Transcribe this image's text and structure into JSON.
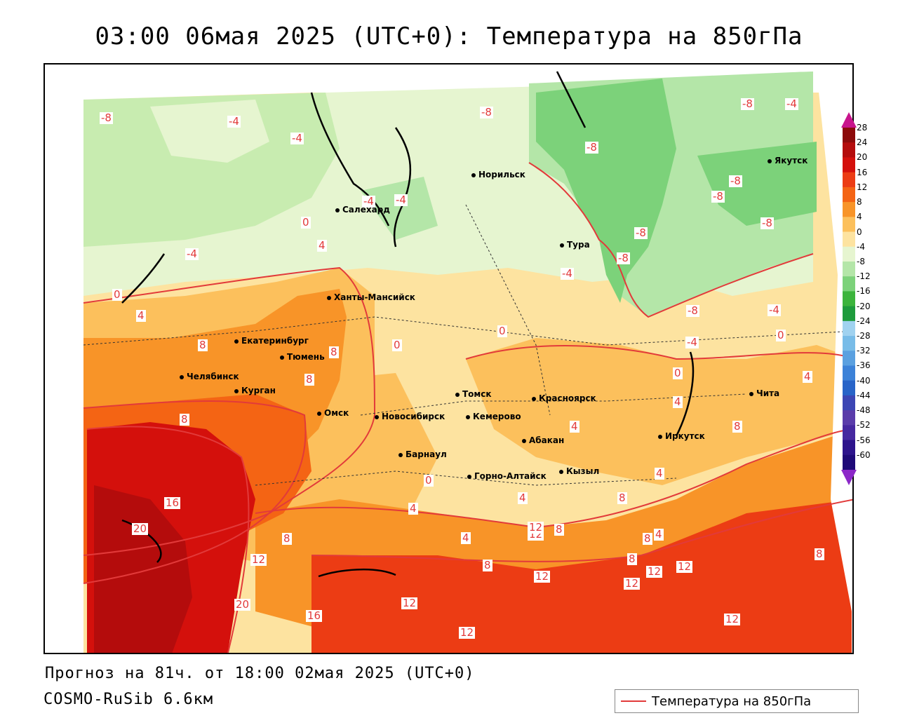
{
  "title": "03:00 06мая 2025 (UTC+0): Температура на 850гПа",
  "footer": {
    "forecast": "Прогноз на 81ч. от 18:00 02мая 2025 (UTC+0)",
    "model": "COSMO-RuSib 6.6км"
  },
  "legend": {
    "label": "Температура на 850гПа",
    "line_color": "#e23a3a"
  },
  "colorbar": {
    "labels": [
      "28",
      "24",
      "20",
      "16",
      "12",
      "8",
      "4",
      "0",
      "-4",
      "-8",
      "-12",
      "-16",
      "-20",
      "-24",
      "-28",
      "-32",
      "-36",
      "-40",
      "-44",
      "-48",
      "-52",
      "-56",
      "-60"
    ],
    "colors": [
      "#8c0a0a",
      "#b40c0c",
      "#d4100c",
      "#ec3c14",
      "#f46414",
      "#f89428",
      "#fcc05c",
      "#fde3a0",
      "#e6f5d0",
      "#b4e6a8",
      "#7cd27a",
      "#3cb43c",
      "#1e9b3c",
      "#a0d2f0",
      "#78bce8",
      "#5aa0e0",
      "#3c82d8",
      "#2864c8",
      "#3c46b4",
      "#5a3caa",
      "#4628a0",
      "#2d148c",
      "#1e0a78"
    ],
    "top_color": "#c8148c",
    "bottom_color": "#8c28c8"
  },
  "cities": [
    {
      "name": "Норильск"
    },
    {
      "name": "Салехард"
    },
    {
      "name": "Тура"
    },
    {
      "name": "Якутск"
    },
    {
      "name": "Ханты-Мансийск"
    },
    {
      "name": "Екатеринбург"
    },
    {
      "name": "Тюмень"
    },
    {
      "name": "Челябинск"
    },
    {
      "name": "Курган"
    },
    {
      "name": "Омск"
    },
    {
      "name": "Новосибирск"
    },
    {
      "name": "Томск"
    },
    {
      "name": "Кемерово"
    },
    {
      "name": "Красноярск"
    },
    {
      "name": "Абакан"
    },
    {
      "name": "Барнаул"
    },
    {
      "name": "Горно-Алтайск"
    },
    {
      "name": "Кызыл"
    },
    {
      "name": "Иркутск"
    },
    {
      "name": "Чита"
    }
  ],
  "contour_labels": [
    "-8",
    "-4",
    "-4",
    "-4",
    "-4",
    "-8",
    "-8",
    "-4",
    "-8",
    "-8",
    "-8",
    "-8",
    "-8",
    "-4",
    "-8",
    "-4",
    "-4",
    "-4",
    "-8",
    "0",
    "0",
    "0",
    "4",
    "4",
    "4",
    "8",
    "8",
    "8",
    "8",
    "0",
    "0",
    "0",
    "4",
    "4",
    "4",
    "8",
    "0",
    "4",
    "4",
    "4",
    "8",
    "8",
    "4",
    "12",
    "8",
    "16",
    "20",
    "8",
    "12",
    "8",
    "12",
    "12",
    "12",
    "12",
    "12",
    "16",
    "20",
    "12",
    "12",
    "12",
    "8",
    "8"
  ]
}
